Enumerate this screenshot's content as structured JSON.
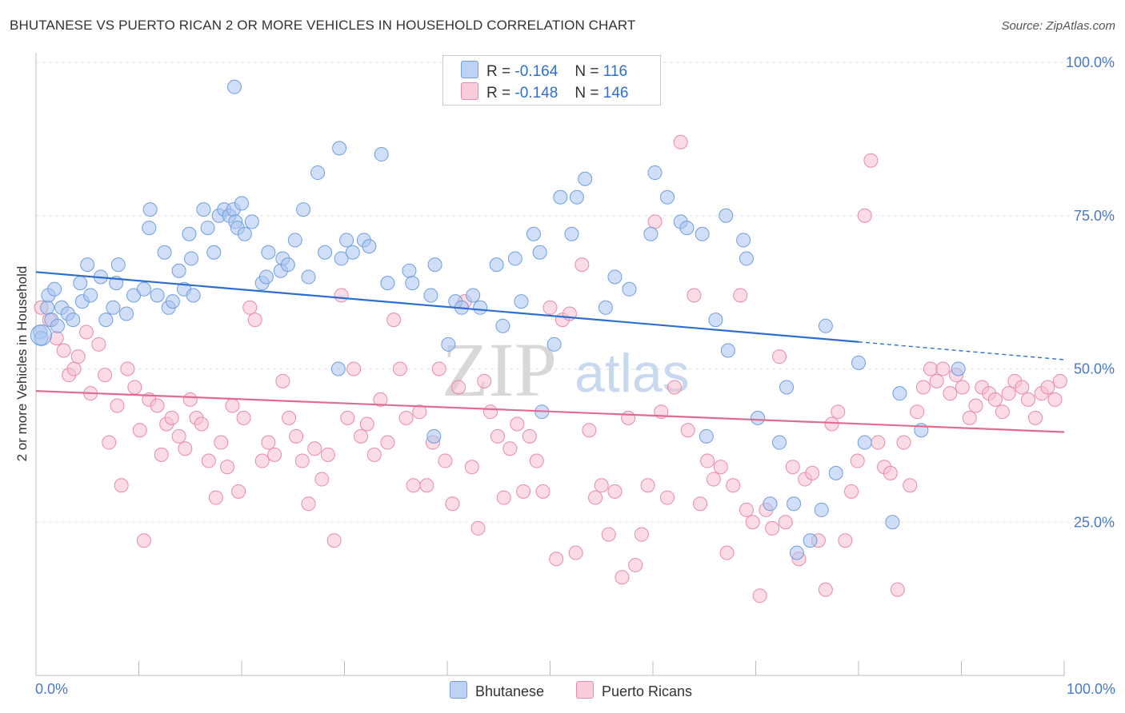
{
  "header": {
    "title": "BHUTANESE VS PUERTO RICAN 2 OR MORE VEHICLES IN HOUSEHOLD CORRELATION CHART",
    "source": "Source: ZipAtlas.com"
  },
  "legend": {
    "rows": [
      {
        "r_label": "R =",
        "r_value": "-0.164",
        "n_label": "N =",
        "n_value": "116",
        "color": "#9dbdf0"
      },
      {
        "r_label": "R =",
        "r_value": "-0.148",
        "n_label": "N =",
        "n_value": "146",
        "color": "#f4b1c6"
      }
    ]
  },
  "bottom_legend": {
    "items": [
      {
        "label": "Bhutanese",
        "color": "#9dbdf0"
      },
      {
        "label": "Puerto Ricans",
        "color": "#f4b1c6"
      }
    ]
  },
  "watermark": {
    "zip": "ZIP",
    "atlas": "atlas"
  },
  "colors": {
    "blue_fill": "#a9c5f0",
    "blue_stroke": "#6f9ede",
    "blue_line": "#2c6fd1",
    "pink_fill": "#f7bfd0",
    "pink_stroke": "#e88aa8",
    "pink_line": "#e06c93",
    "tick_text": "#4a78c8",
    "grid": "#e3e3e3"
  },
  "chart_data": {
    "type": "scatter",
    "title": "BHUTANESE VS PUERTO RICAN 2 OR MORE VEHICLES IN HOUSEHOLD CORRELATION CHART",
    "xlabel": "",
    "ylabel": "2 or more Vehicles in Household",
    "x_tick_labels": [
      "0.0%",
      "100.0%"
    ],
    "y_tick_labels": [
      "25.0%",
      "50.0%",
      "75.0%",
      "100.0%"
    ],
    "xlim": [
      0,
      100
    ],
    "ylim": [
      0,
      100
    ],
    "grid": true,
    "legend_position": "top-center",
    "series": [
      {
        "name": "Bhutanese",
        "R": -0.164,
        "N": 116,
        "trend": {
          "x0": 0,
          "y0": 65.8,
          "x1": 80,
          "y1": 54.4,
          "x_dash_end": 100,
          "y_dash_end": 51.5
        },
        "points": [
          [
            0.4,
            56
          ],
          [
            0.5,
            55
          ],
          [
            1.1,
            60
          ],
          [
            1.2,
            62
          ],
          [
            1.8,
            63
          ],
          [
            1.5,
            58
          ],
          [
            2.1,
            57
          ],
          [
            2.5,
            60
          ],
          [
            3.1,
            59
          ],
          [
            3.6,
            58
          ],
          [
            4.3,
            64
          ],
          [
            4.5,
            61
          ],
          [
            5.0,
            67
          ],
          [
            5.3,
            62
          ],
          [
            6.3,
            65
          ],
          [
            6.8,
            58
          ],
          [
            7.5,
            60
          ],
          [
            7.8,
            64
          ],
          [
            8.0,
            67
          ],
          [
            8.8,
            59
          ],
          [
            9.5,
            62
          ],
          [
            10.5,
            63
          ],
          [
            11.0,
            73
          ],
          [
            11.1,
            76
          ],
          [
            11.8,
            62
          ],
          [
            12.5,
            69
          ],
          [
            12.9,
            60
          ],
          [
            13.3,
            61
          ],
          [
            13.9,
            66
          ],
          [
            14.9,
            72
          ],
          [
            14.4,
            63
          ],
          [
            15.1,
            68
          ],
          [
            15.3,
            62
          ],
          [
            16.7,
            73
          ],
          [
            16.3,
            76
          ],
          [
            17.3,
            69
          ],
          [
            17.8,
            75
          ],
          [
            18.3,
            76
          ],
          [
            18.8,
            75
          ],
          [
            19.2,
            76
          ],
          [
            19.4,
            74
          ],
          [
            19.6,
            73
          ],
          [
            20.0,
            77
          ],
          [
            20.3,
            72
          ],
          [
            21.0,
            74
          ],
          [
            22.0,
            64
          ],
          [
            22.4,
            65
          ],
          [
            22.6,
            69
          ],
          [
            23.8,
            66
          ],
          [
            24.0,
            68
          ],
          [
            24.5,
            67
          ],
          [
            25.2,
            71
          ],
          [
            26.0,
            76
          ],
          [
            26.5,
            65
          ],
          [
            27.4,
            82
          ],
          [
            28.1,
            69
          ],
          [
            29.5,
            86
          ],
          [
            29.7,
            68
          ],
          [
            30.2,
            71
          ],
          [
            30.8,
            69
          ],
          [
            31.9,
            71
          ],
          [
            32.4,
            70
          ],
          [
            33.6,
            85
          ],
          [
            34.2,
            64
          ],
          [
            36.3,
            66
          ],
          [
            36.6,
            64
          ],
          [
            38.4,
            62
          ],
          [
            38.8,
            67
          ],
          [
            40.1,
            54
          ],
          [
            40.8,
            61
          ],
          [
            41.4,
            60
          ],
          [
            42.5,
            62
          ],
          [
            43.2,
            60
          ],
          [
            44.8,
            67
          ],
          [
            45.4,
            57
          ],
          [
            46.6,
            68
          ],
          [
            47.2,
            61
          ],
          [
            48.4,
            72
          ],
          [
            49.0,
            69
          ],
          [
            50.4,
            54
          ],
          [
            51.0,
            78
          ],
          [
            52.1,
            72
          ],
          [
            52.6,
            78
          ],
          [
            53.4,
            81
          ],
          [
            55.4,
            60
          ],
          [
            56.3,
            65
          ],
          [
            57.7,
            63
          ],
          [
            59.8,
            72
          ],
          [
            60.2,
            82
          ],
          [
            61.4,
            78
          ],
          [
            62.7,
            74
          ],
          [
            63.3,
            73
          ],
          [
            64.8,
            72
          ],
          [
            65.2,
            39
          ],
          [
            66.1,
            58
          ],
          [
            67.1,
            75
          ],
          [
            67.3,
            53
          ],
          [
            68.8,
            71
          ],
          [
            69.1,
            68
          ],
          [
            70.2,
            42
          ],
          [
            71.4,
            28
          ],
          [
            72.3,
            38
          ],
          [
            73.0,
            47
          ],
          [
            73.7,
            28
          ],
          [
            74.0,
            20
          ],
          [
            75.3,
            22
          ],
          [
            76.4,
            27
          ],
          [
            76.8,
            57
          ],
          [
            77.8,
            33
          ],
          [
            80.0,
            51
          ],
          [
            80.6,
            38
          ],
          [
            83.3,
            25
          ],
          [
            84.0,
            46
          ],
          [
            86.1,
            40
          ],
          [
            89.7,
            50
          ],
          [
            19.3,
            96
          ],
          [
            29.4,
            50
          ],
          [
            38.7,
            39
          ],
          [
            49.2,
            43
          ]
        ]
      },
      {
        "name": "Puerto Ricans",
        "R": -0.148,
        "N": 146,
        "trend": {
          "x0": 0,
          "y0": 46.4,
          "x1": 100,
          "y1": 39.7
        },
        "points": [
          [
            0.5,
            60
          ],
          [
            1.3,
            58
          ],
          [
            2.0,
            55
          ],
          [
            2.7,
            53
          ],
          [
            3.2,
            49
          ],
          [
            3.7,
            50
          ],
          [
            4.1,
            52
          ],
          [
            4.9,
            56
          ],
          [
            5.3,
            46
          ],
          [
            6.1,
            54
          ],
          [
            6.7,
            49
          ],
          [
            7.1,
            38
          ],
          [
            7.9,
            44
          ],
          [
            8.3,
            31
          ],
          [
            8.9,
            50
          ],
          [
            9.6,
            47
          ],
          [
            10.1,
            40
          ],
          [
            10.5,
            22
          ],
          [
            11.0,
            45
          ],
          [
            11.8,
            44
          ],
          [
            12.2,
            36
          ],
          [
            12.7,
            41
          ],
          [
            13.2,
            42
          ],
          [
            13.9,
            39
          ],
          [
            14.5,
            37
          ],
          [
            15.0,
            45
          ],
          [
            15.6,
            42
          ],
          [
            16.1,
            41
          ],
          [
            16.8,
            35
          ],
          [
            17.5,
            29
          ],
          [
            18.0,
            38
          ],
          [
            18.6,
            34
          ],
          [
            19.1,
            44
          ],
          [
            19.7,
            30
          ],
          [
            20.2,
            42
          ],
          [
            20.8,
            60
          ],
          [
            21.3,
            58
          ],
          [
            22.0,
            35
          ],
          [
            22.6,
            38
          ],
          [
            23.2,
            36
          ],
          [
            24.0,
            48
          ],
          [
            24.6,
            42
          ],
          [
            25.3,
            39
          ],
          [
            25.9,
            35
          ],
          [
            26.5,
            28
          ],
          [
            27.1,
            37
          ],
          [
            27.8,
            32
          ],
          [
            28.4,
            36
          ],
          [
            29.0,
            22
          ],
          [
            29.7,
            62
          ],
          [
            30.3,
            42
          ],
          [
            30.9,
            50
          ],
          [
            31.6,
            39
          ],
          [
            32.2,
            41
          ],
          [
            32.9,
            36
          ],
          [
            33.5,
            45
          ],
          [
            34.2,
            38
          ],
          [
            34.8,
            58
          ],
          [
            35.4,
            50
          ],
          [
            36.0,
            42
          ],
          [
            36.7,
            31
          ],
          [
            37.3,
            43
          ],
          [
            38.0,
            31
          ],
          [
            38.6,
            38
          ],
          [
            39.2,
            50
          ],
          [
            39.8,
            35
          ],
          [
            40.5,
            28
          ],
          [
            41.1,
            47
          ],
          [
            41.7,
            61
          ],
          [
            42.4,
            34
          ],
          [
            43.0,
            24
          ],
          [
            43.6,
            48
          ],
          [
            44.2,
            43
          ],
          [
            44.9,
            39
          ],
          [
            45.5,
            29
          ],
          [
            46.1,
            37
          ],
          [
            46.8,
            41
          ],
          [
            47.4,
            30
          ],
          [
            48.0,
            39
          ],
          [
            48.7,
            35
          ],
          [
            49.3,
            30
          ],
          [
            50.0,
            60
          ],
          [
            50.6,
            19
          ],
          [
            51.2,
            58
          ],
          [
            51.9,
            59
          ],
          [
            52.5,
            20
          ],
          [
            53.1,
            67
          ],
          [
            53.8,
            40
          ],
          [
            54.4,
            29
          ],
          [
            55.0,
            31
          ],
          [
            55.7,
            23
          ],
          [
            56.3,
            30
          ],
          [
            57.0,
            16
          ],
          [
            57.6,
            42
          ],
          [
            58.3,
            18
          ],
          [
            58.9,
            23
          ],
          [
            59.5,
            31
          ],
          [
            60.2,
            74
          ],
          [
            60.8,
            43
          ],
          [
            61.4,
            29
          ],
          [
            62.1,
            47
          ],
          [
            62.7,
            87
          ],
          [
            63.4,
            40
          ],
          [
            64.0,
            62
          ],
          [
            64.6,
            28
          ],
          [
            65.3,
            35
          ],
          [
            65.9,
            32
          ],
          [
            66.6,
            34
          ],
          [
            67.2,
            20
          ],
          [
            67.8,
            31
          ],
          [
            68.5,
            62
          ],
          [
            69.1,
            27
          ],
          [
            69.7,
            25
          ],
          [
            70.4,
            13
          ],
          [
            71.0,
            27
          ],
          [
            71.6,
            24
          ],
          [
            72.3,
            52
          ],
          [
            72.9,
            25
          ],
          [
            73.6,
            34
          ],
          [
            74.2,
            19
          ],
          [
            74.8,
            32
          ],
          [
            75.5,
            33
          ],
          [
            76.1,
            22
          ],
          [
            76.8,
            14
          ],
          [
            77.4,
            41
          ],
          [
            78.0,
            43
          ],
          [
            78.7,
            22
          ],
          [
            79.3,
            30
          ],
          [
            79.9,
            35
          ],
          [
            80.6,
            75
          ],
          [
            81.2,
            84
          ],
          [
            81.9,
            38
          ],
          [
            82.5,
            34
          ],
          [
            83.1,
            33
          ],
          [
            83.8,
            14
          ],
          [
            84.4,
            38
          ],
          [
            85.0,
            31
          ],
          [
            85.7,
            43
          ],
          [
            86.3,
            47
          ],
          [
            87.0,
            50
          ],
          [
            87.6,
            48
          ],
          [
            88.2,
            50
          ],
          [
            88.9,
            46
          ],
          [
            89.5,
            49
          ],
          [
            90.1,
            47
          ],
          [
            90.8,
            42
          ],
          [
            91.4,
            44
          ],
          [
            92.0,
            47
          ],
          [
            92.7,
            46
          ],
          [
            93.3,
            45
          ],
          [
            94.0,
            43
          ],
          [
            94.6,
            46
          ],
          [
            95.2,
            48
          ],
          [
            95.9,
            47
          ],
          [
            96.5,
            45
          ],
          [
            97.2,
            42
          ],
          [
            97.8,
            46
          ],
          [
            98.4,
            47
          ],
          [
            99.1,
            45
          ],
          [
            99.6,
            48
          ]
        ]
      }
    ]
  }
}
